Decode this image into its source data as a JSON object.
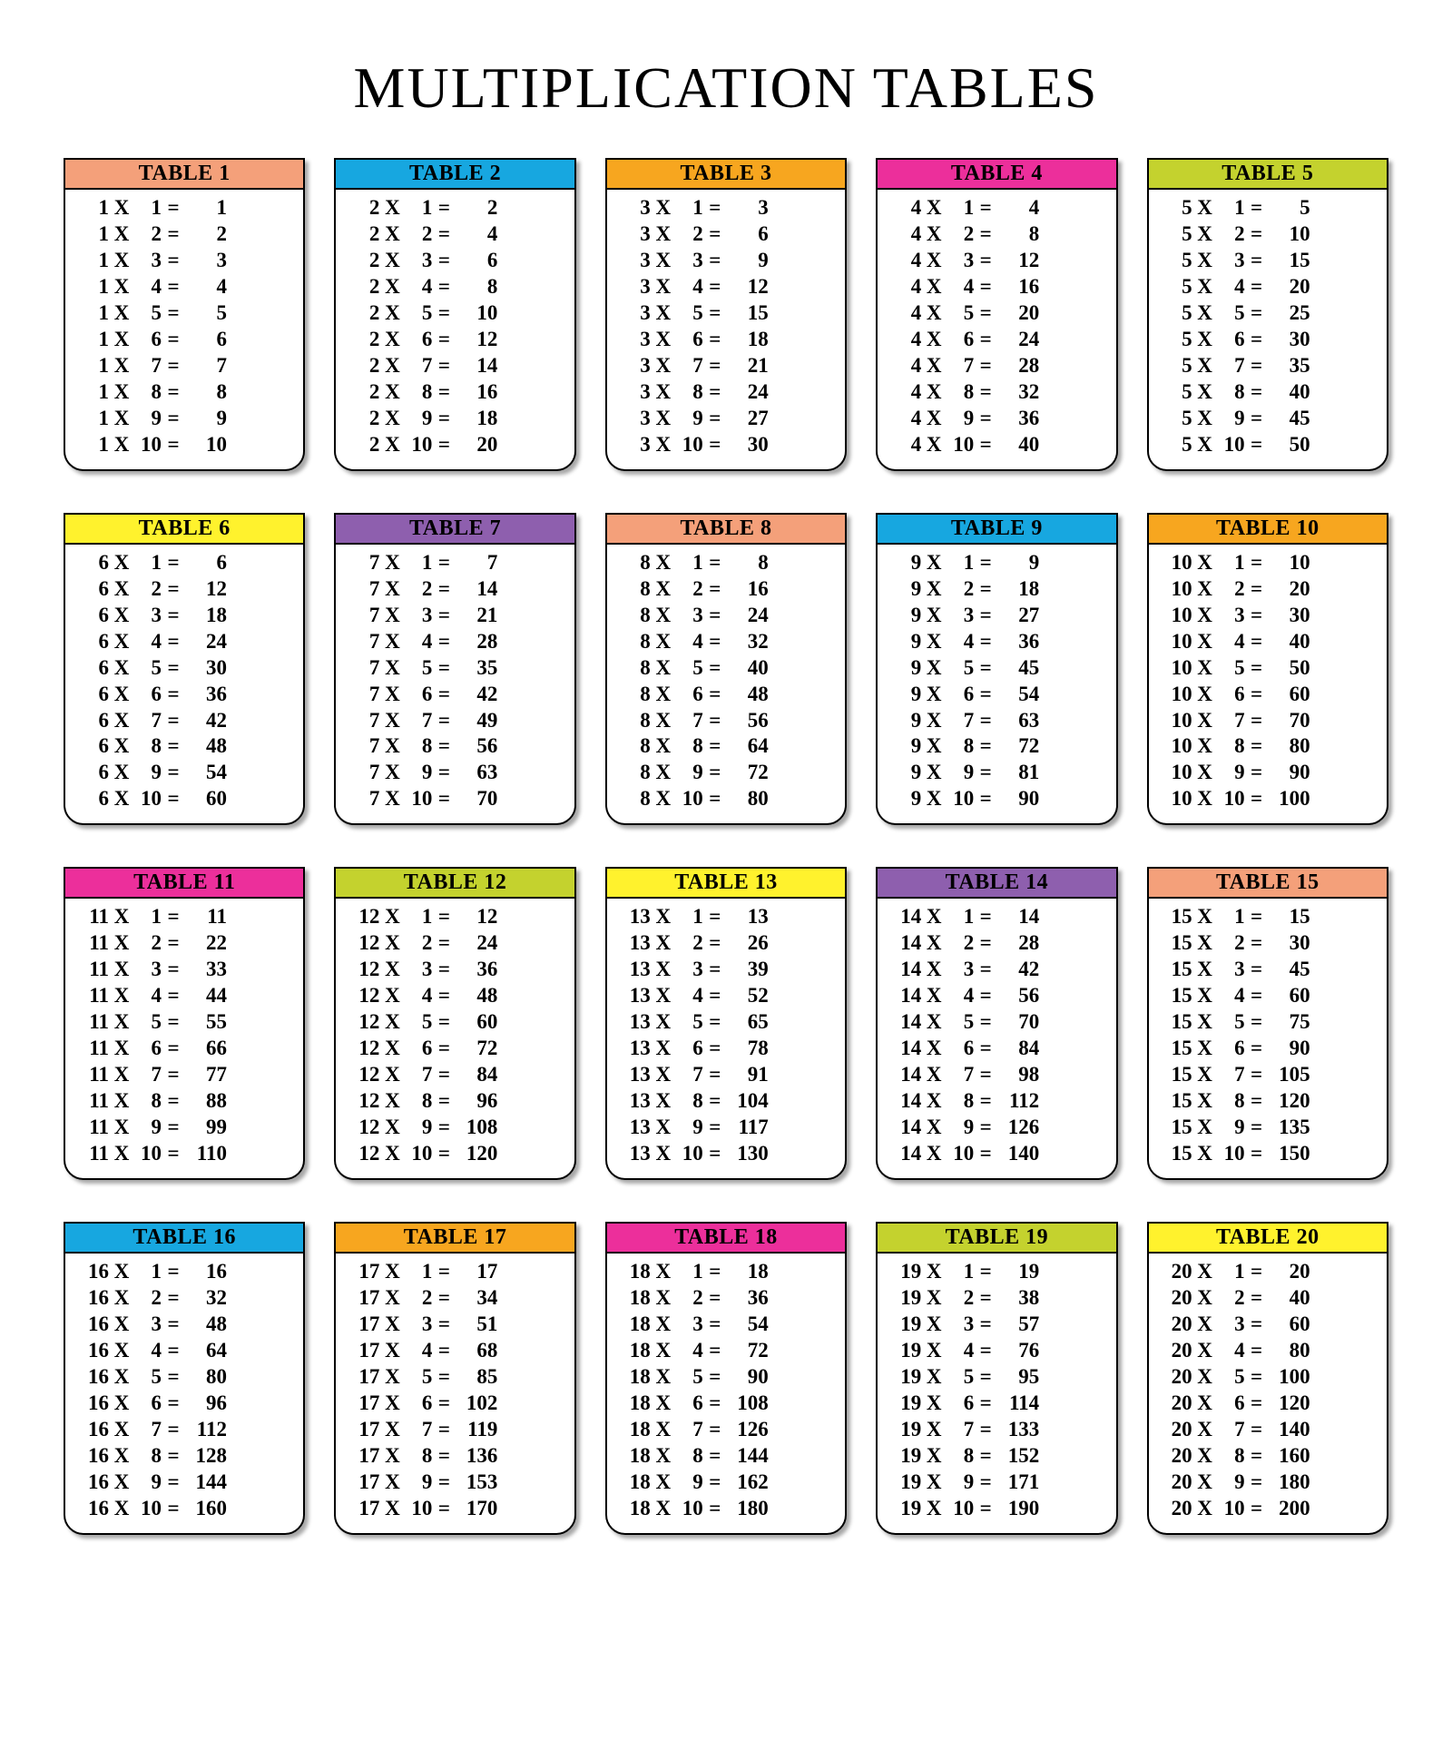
{
  "title": "MULTIPLICATION TABLES",
  "symbols": {
    "times": "X",
    "equals": "="
  },
  "layout": {
    "columns": 5,
    "rows_per_table": 10,
    "title_fontsize": 64,
    "header_fontsize": 24,
    "row_fontsize": 23,
    "card_border_color": "#000000",
    "card_shadow": "4px 4px 4px rgba(0,0,0,0.35)",
    "background_color": "#ffffff"
  },
  "tables": [
    {
      "label": "TABLE 1",
      "n": 1,
      "header_bg": "#f4a07a",
      "rows": [
        [
          1,
          1,
          1
        ],
        [
          1,
          2,
          2
        ],
        [
          1,
          3,
          3
        ],
        [
          1,
          4,
          4
        ],
        [
          1,
          5,
          5
        ],
        [
          1,
          6,
          6
        ],
        [
          1,
          7,
          7
        ],
        [
          1,
          8,
          8
        ],
        [
          1,
          9,
          9
        ],
        [
          1,
          10,
          10
        ]
      ]
    },
    {
      "label": "TABLE 2",
      "n": 2,
      "header_bg": "#17a7e0",
      "rows": [
        [
          2,
          1,
          2
        ],
        [
          2,
          2,
          4
        ],
        [
          2,
          3,
          6
        ],
        [
          2,
          4,
          8
        ],
        [
          2,
          5,
          10
        ],
        [
          2,
          6,
          12
        ],
        [
          2,
          7,
          14
        ],
        [
          2,
          8,
          16
        ],
        [
          2,
          9,
          18
        ],
        [
          2,
          10,
          20
        ]
      ]
    },
    {
      "label": "TABLE 3",
      "n": 3,
      "header_bg": "#f7a61f",
      "rows": [
        [
          3,
          1,
          3
        ],
        [
          3,
          2,
          6
        ],
        [
          3,
          3,
          9
        ],
        [
          3,
          4,
          12
        ],
        [
          3,
          5,
          15
        ],
        [
          3,
          6,
          18
        ],
        [
          3,
          7,
          21
        ],
        [
          3,
          8,
          24
        ],
        [
          3,
          9,
          27
        ],
        [
          3,
          10,
          30
        ]
      ]
    },
    {
      "label": "TABLE 4",
      "n": 4,
      "header_bg": "#ec2f9b",
      "rows": [
        [
          4,
          1,
          4
        ],
        [
          4,
          2,
          8
        ],
        [
          4,
          3,
          12
        ],
        [
          4,
          4,
          16
        ],
        [
          4,
          5,
          20
        ],
        [
          4,
          6,
          24
        ],
        [
          4,
          7,
          28
        ],
        [
          4,
          8,
          32
        ],
        [
          4,
          9,
          36
        ],
        [
          4,
          10,
          40
        ]
      ]
    },
    {
      "label": "TABLE 5",
      "n": 5,
      "header_bg": "#c4d22e",
      "rows": [
        [
          5,
          1,
          5
        ],
        [
          5,
          2,
          10
        ],
        [
          5,
          3,
          15
        ],
        [
          5,
          4,
          20
        ],
        [
          5,
          5,
          25
        ],
        [
          5,
          6,
          30
        ],
        [
          5,
          7,
          35
        ],
        [
          5,
          8,
          40
        ],
        [
          5,
          9,
          45
        ],
        [
          5,
          10,
          50
        ]
      ]
    },
    {
      "label": "TABLE 6",
      "n": 6,
      "header_bg": "#fff22d",
      "rows": [
        [
          6,
          1,
          6
        ],
        [
          6,
          2,
          12
        ],
        [
          6,
          3,
          18
        ],
        [
          6,
          4,
          24
        ],
        [
          6,
          5,
          30
        ],
        [
          6,
          6,
          36
        ],
        [
          6,
          7,
          42
        ],
        [
          6,
          8,
          48
        ],
        [
          6,
          9,
          54
        ],
        [
          6,
          10,
          60
        ]
      ]
    },
    {
      "label": "TABLE 7",
      "n": 7,
      "header_bg": "#8e5fae",
      "rows": [
        [
          7,
          1,
          7
        ],
        [
          7,
          2,
          14
        ],
        [
          7,
          3,
          21
        ],
        [
          7,
          4,
          28
        ],
        [
          7,
          5,
          35
        ],
        [
          7,
          6,
          42
        ],
        [
          7,
          7,
          49
        ],
        [
          7,
          8,
          56
        ],
        [
          7,
          9,
          63
        ],
        [
          7,
          10,
          70
        ]
      ]
    },
    {
      "label": "TABLE 8",
      "n": 8,
      "header_bg": "#f4a07a",
      "rows": [
        [
          8,
          1,
          8
        ],
        [
          8,
          2,
          16
        ],
        [
          8,
          3,
          24
        ],
        [
          8,
          4,
          32
        ],
        [
          8,
          5,
          40
        ],
        [
          8,
          6,
          48
        ],
        [
          8,
          7,
          56
        ],
        [
          8,
          8,
          64
        ],
        [
          8,
          9,
          72
        ],
        [
          8,
          10,
          80
        ]
      ]
    },
    {
      "label": "TABLE 9",
      "n": 9,
      "header_bg": "#17a7e0",
      "rows": [
        [
          9,
          1,
          9
        ],
        [
          9,
          2,
          18
        ],
        [
          9,
          3,
          27
        ],
        [
          9,
          4,
          36
        ],
        [
          9,
          5,
          45
        ],
        [
          9,
          6,
          54
        ],
        [
          9,
          7,
          63
        ],
        [
          9,
          8,
          72
        ],
        [
          9,
          9,
          81
        ],
        [
          9,
          10,
          90
        ]
      ]
    },
    {
      "label": "TABLE 10",
      "n": 10,
      "header_bg": "#f7a61f",
      "rows": [
        [
          10,
          1,
          10
        ],
        [
          10,
          2,
          20
        ],
        [
          10,
          3,
          30
        ],
        [
          10,
          4,
          40
        ],
        [
          10,
          5,
          50
        ],
        [
          10,
          6,
          60
        ],
        [
          10,
          7,
          70
        ],
        [
          10,
          8,
          80
        ],
        [
          10,
          9,
          90
        ],
        [
          10,
          10,
          100
        ]
      ]
    },
    {
      "label": "TABLE 11",
      "n": 11,
      "header_bg": "#ec2f9b",
      "rows": [
        [
          11,
          1,
          11
        ],
        [
          11,
          2,
          22
        ],
        [
          11,
          3,
          33
        ],
        [
          11,
          4,
          44
        ],
        [
          11,
          5,
          55
        ],
        [
          11,
          6,
          66
        ],
        [
          11,
          7,
          77
        ],
        [
          11,
          8,
          88
        ],
        [
          11,
          9,
          99
        ],
        [
          11,
          10,
          110
        ]
      ]
    },
    {
      "label": "TABLE 12",
      "n": 12,
      "header_bg": "#c4d22e",
      "rows": [
        [
          12,
          1,
          12
        ],
        [
          12,
          2,
          24
        ],
        [
          12,
          3,
          36
        ],
        [
          12,
          4,
          48
        ],
        [
          12,
          5,
          60
        ],
        [
          12,
          6,
          72
        ],
        [
          12,
          7,
          84
        ],
        [
          12,
          8,
          96
        ],
        [
          12,
          9,
          108
        ],
        [
          12,
          10,
          120
        ]
      ]
    },
    {
      "label": "TABLE 13",
      "n": 13,
      "header_bg": "#fff22d",
      "rows": [
        [
          13,
          1,
          13
        ],
        [
          13,
          2,
          26
        ],
        [
          13,
          3,
          39
        ],
        [
          13,
          4,
          52
        ],
        [
          13,
          5,
          65
        ],
        [
          13,
          6,
          78
        ],
        [
          13,
          7,
          91
        ],
        [
          13,
          8,
          104
        ],
        [
          13,
          9,
          117
        ],
        [
          13,
          10,
          130
        ]
      ]
    },
    {
      "label": "TABLE 14",
      "n": 14,
      "header_bg": "#8e5fae",
      "rows": [
        [
          14,
          1,
          14
        ],
        [
          14,
          2,
          28
        ],
        [
          14,
          3,
          42
        ],
        [
          14,
          4,
          56
        ],
        [
          14,
          5,
          70
        ],
        [
          14,
          6,
          84
        ],
        [
          14,
          7,
          98
        ],
        [
          14,
          8,
          112
        ],
        [
          14,
          9,
          126
        ],
        [
          14,
          10,
          140
        ]
      ]
    },
    {
      "label": "TABLE 15",
      "n": 15,
      "header_bg": "#f4a07a",
      "rows": [
        [
          15,
          1,
          15
        ],
        [
          15,
          2,
          30
        ],
        [
          15,
          3,
          45
        ],
        [
          15,
          4,
          60
        ],
        [
          15,
          5,
          75
        ],
        [
          15,
          6,
          90
        ],
        [
          15,
          7,
          105
        ],
        [
          15,
          8,
          120
        ],
        [
          15,
          9,
          135
        ],
        [
          15,
          10,
          150
        ]
      ]
    },
    {
      "label": "TABLE 16",
      "n": 16,
      "header_bg": "#17a7e0",
      "rows": [
        [
          16,
          1,
          16
        ],
        [
          16,
          2,
          32
        ],
        [
          16,
          3,
          48
        ],
        [
          16,
          4,
          64
        ],
        [
          16,
          5,
          80
        ],
        [
          16,
          6,
          96
        ],
        [
          16,
          7,
          112
        ],
        [
          16,
          8,
          128
        ],
        [
          16,
          9,
          144
        ],
        [
          16,
          10,
          160
        ]
      ]
    },
    {
      "label": "TABLE 17",
      "n": 17,
      "header_bg": "#f7a61f",
      "rows": [
        [
          17,
          1,
          17
        ],
        [
          17,
          2,
          34
        ],
        [
          17,
          3,
          51
        ],
        [
          17,
          4,
          68
        ],
        [
          17,
          5,
          85
        ],
        [
          17,
          6,
          102
        ],
        [
          17,
          7,
          119
        ],
        [
          17,
          8,
          136
        ],
        [
          17,
          9,
          153
        ],
        [
          17,
          10,
          170
        ]
      ]
    },
    {
      "label": "TABLE 18",
      "n": 18,
      "header_bg": "#ec2f9b",
      "rows": [
        [
          18,
          1,
          18
        ],
        [
          18,
          2,
          36
        ],
        [
          18,
          3,
          54
        ],
        [
          18,
          4,
          72
        ],
        [
          18,
          5,
          90
        ],
        [
          18,
          6,
          108
        ],
        [
          18,
          7,
          126
        ],
        [
          18,
          8,
          144
        ],
        [
          18,
          9,
          162
        ],
        [
          18,
          10,
          180
        ]
      ]
    },
    {
      "label": "TABLE 19",
      "n": 19,
      "header_bg": "#c4d22e",
      "rows": [
        [
          19,
          1,
          19
        ],
        [
          19,
          2,
          38
        ],
        [
          19,
          3,
          57
        ],
        [
          19,
          4,
          76
        ],
        [
          19,
          5,
          95
        ],
        [
          19,
          6,
          114
        ],
        [
          19,
          7,
          133
        ],
        [
          19,
          8,
          152
        ],
        [
          19,
          9,
          171
        ],
        [
          19,
          10,
          190
        ]
      ]
    },
    {
      "label": "TABLE 20",
      "n": 20,
      "header_bg": "#fff22d",
      "rows": [
        [
          20,
          1,
          20
        ],
        [
          20,
          2,
          40
        ],
        [
          20,
          3,
          60
        ],
        [
          20,
          4,
          80
        ],
        [
          20,
          5,
          100
        ],
        [
          20,
          6,
          120
        ],
        [
          20,
          7,
          140
        ],
        [
          20,
          8,
          160
        ],
        [
          20,
          9,
          180
        ],
        [
          20,
          10,
          200
        ]
      ]
    }
  ]
}
